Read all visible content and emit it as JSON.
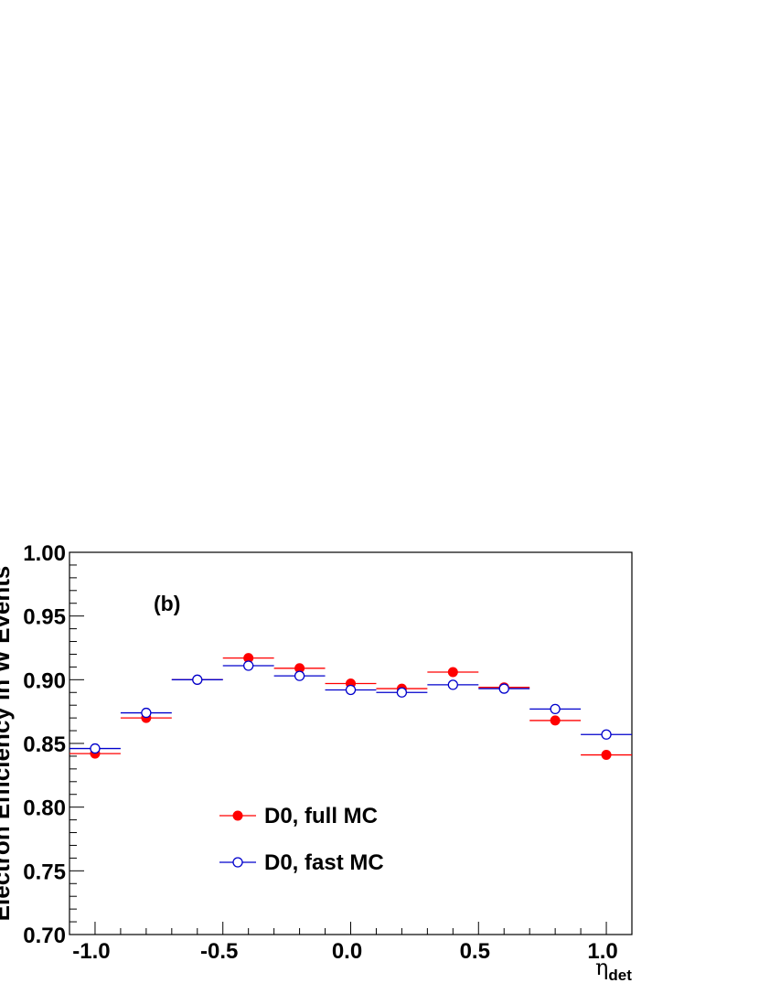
{
  "chart_data": {
    "type": "scatter",
    "panel_label": "(b)",
    "xlabel": "η",
    "xlabel_sub": "det",
    "ylabel": "Electron Efficiency in W Events",
    "xlim": [
      -1.1,
      1.1
    ],
    "ylim": [
      0.7,
      1.0
    ],
    "x_ticks": [
      -1.0,
      -0.5,
      0.0,
      0.5,
      1.0
    ],
    "x_tick_labels": [
      "-1.0",
      "-0.5",
      "0.0",
      "0.5",
      "1.0"
    ],
    "y_ticks": [
      0.7,
      0.75,
      0.8,
      0.85,
      0.9,
      0.95,
      1.0
    ],
    "y_tick_labels": [
      "0.70",
      "0.75",
      "0.80",
      "0.85",
      "0.90",
      "0.95",
      "1.00"
    ],
    "bin_half_width": 0.1,
    "grid": false,
    "legend_position": "lower-center",
    "series": [
      {
        "name": "D0, full MC",
        "color": "#ff0000",
        "marker": "filled-circle",
        "x": [
          -1.0,
          -0.8,
          -0.6,
          -0.4,
          -0.2,
          0.0,
          0.2,
          0.4,
          0.6,
          0.8,
          1.0
        ],
        "values": [
          0.842,
          0.87,
          0.9,
          0.917,
          0.909,
          0.897,
          0.893,
          0.906,
          0.894,
          0.868,
          0.841
        ]
      },
      {
        "name": "D0, fast MC",
        "color": "#0000cc",
        "marker": "open-circle",
        "x": [
          -1.0,
          -0.8,
          -0.6,
          -0.4,
          -0.2,
          0.0,
          0.2,
          0.4,
          0.6,
          0.8,
          1.0
        ],
        "values": [
          0.846,
          0.874,
          0.9,
          0.911,
          0.903,
          0.892,
          0.89,
          0.896,
          0.893,
          0.877,
          0.857
        ]
      }
    ]
  }
}
